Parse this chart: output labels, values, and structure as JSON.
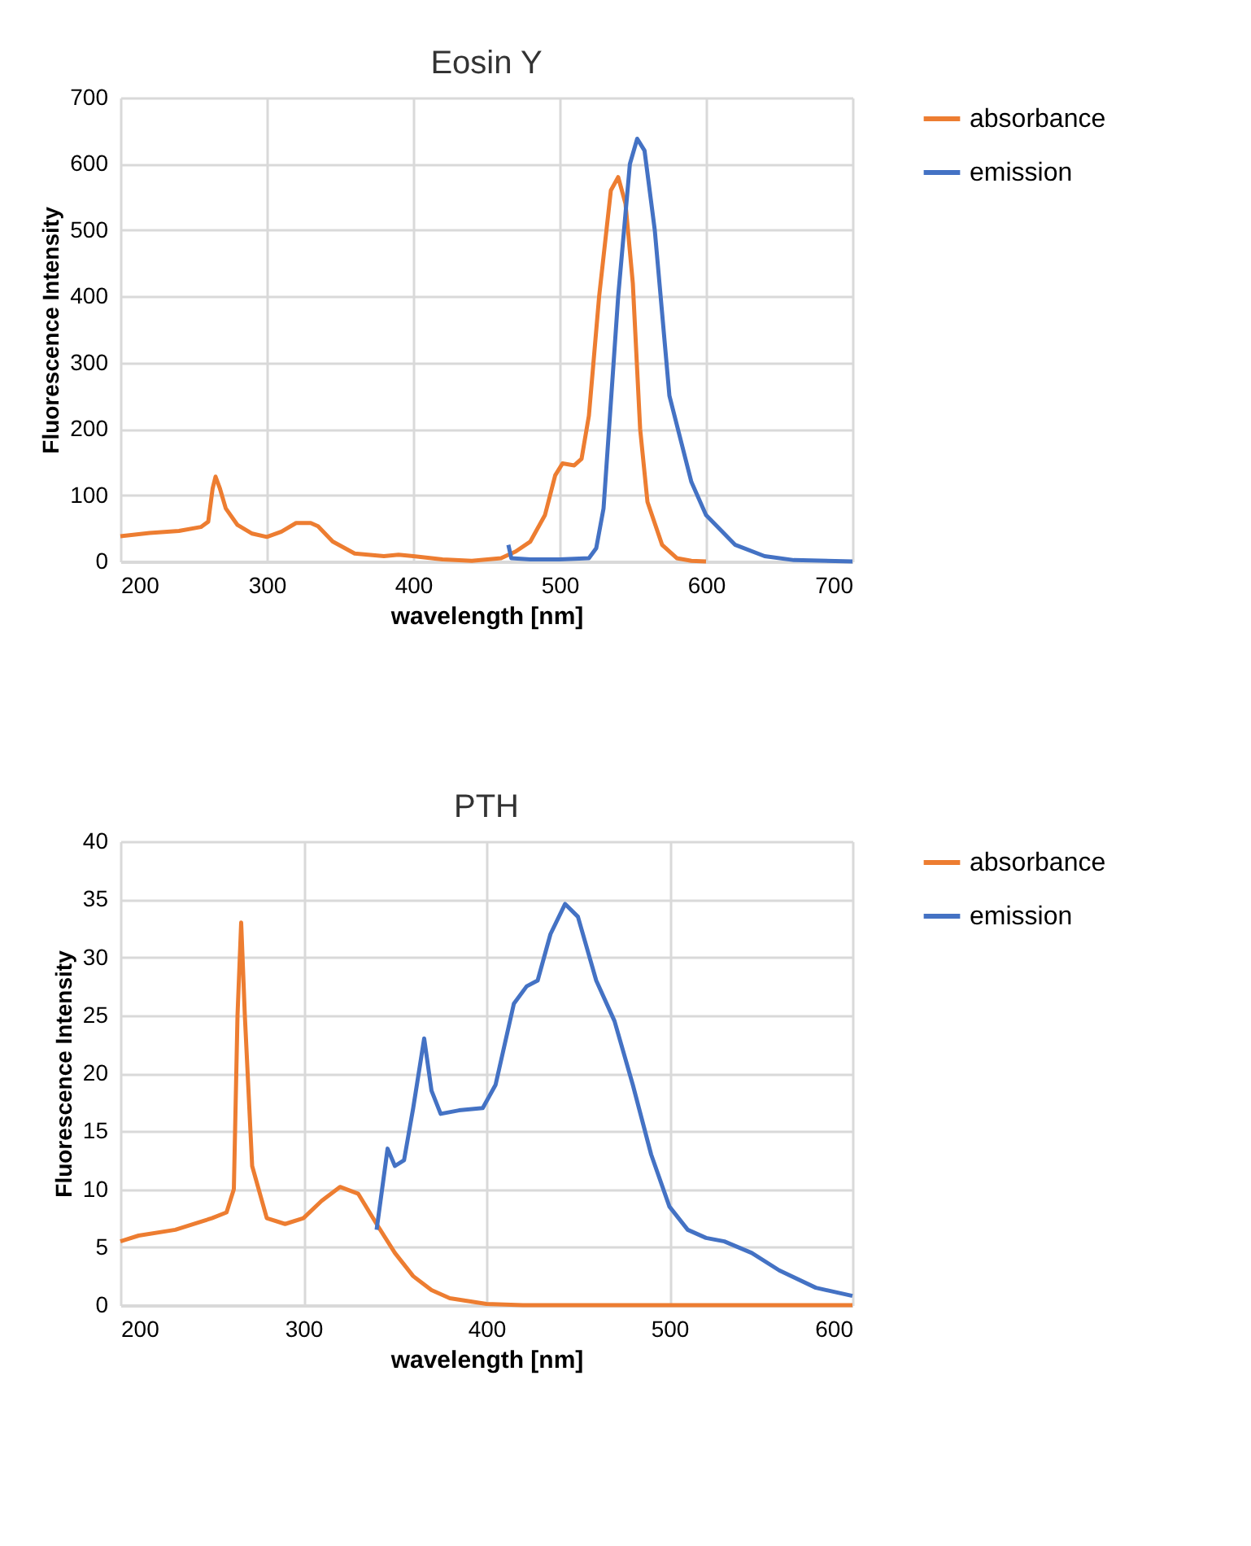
{
  "chart_data": [
    {
      "type": "line",
      "title": "Eosin Y",
      "xlabel": "wavelength [nm]",
      "ylabel": "Fluorescence Intensity",
      "xlim": [
        200,
        700
      ],
      "xticks": [
        200,
        300,
        400,
        500,
        600,
        700
      ],
      "ylim": [
        0,
        700
      ],
      "yticks": [
        0,
        100,
        200,
        300,
        400,
        500,
        600,
        700
      ],
      "grid": true,
      "legend": "right",
      "series": [
        {
          "name": "absorbance",
          "color": "#ed7d31",
          "x": [
            200,
            220,
            240,
            255,
            260,
            263,
            265,
            268,
            272,
            280,
            290,
            300,
            310,
            320,
            330,
            335,
            345,
            360,
            380,
            390,
            400,
            420,
            440,
            460,
            470,
            480,
            490,
            497,
            502,
            510,
            515,
            520,
            527,
            535,
            540,
            545,
            550,
            555,
            560,
            570,
            580,
            590,
            600
          ],
          "values": [
            38,
            43,
            46,
            52,
            60,
            110,
            128,
            110,
            80,
            55,
            42,
            37,
            45,
            58,
            58,
            53,
            30,
            12,
            8,
            10,
            8,
            3,
            1,
            5,
            15,
            30,
            70,
            130,
            148,
            145,
            155,
            220,
            400,
            560,
            580,
            540,
            420,
            200,
            90,
            25,
            5,
            1,
            0
          ]
        },
        {
          "name": "emission",
          "color": "#4472c4",
          "x": [
            465,
            467,
            480,
            500,
            520,
            525,
            530,
            540,
            548,
            553,
            558,
            565,
            575,
            590,
            600,
            620,
            640,
            660,
            700
          ],
          "values": [
            25,
            5,
            3,
            3,
            5,
            20,
            80,
            400,
            600,
            638,
            620,
            500,
            250,
            120,
            70,
            25,
            8,
            2,
            0
          ]
        }
      ]
    },
    {
      "type": "line",
      "title": "PTH",
      "xlabel": "wavelength [nm]",
      "ylabel": "Fluorescence Intensity",
      "xlim": [
        200,
        600
      ],
      "xticks": [
        200,
        300,
        400,
        500,
        600
      ],
      "ylim": [
        0,
        40
      ],
      "yticks": [
        0,
        5,
        10,
        15,
        20,
        25,
        30,
        35,
        40
      ],
      "grid": true,
      "legend": "right",
      "series": [
        {
          "name": "absorbance",
          "color": "#ed7d31",
          "x": [
            200,
            210,
            230,
            250,
            258,
            262,
            264,
            266,
            268,
            272,
            280,
            290,
            300,
            310,
            320,
            330,
            340,
            350,
            360,
            370,
            380,
            400,
            420,
            600
          ],
          "values": [
            5.5,
            6,
            6.5,
            7.5,
            8,
            10,
            25,
            33,
            25,
            12,
            7.5,
            7,
            7.5,
            9,
            10.2,
            9.6,
            7,
            4.5,
            2.5,
            1.3,
            0.6,
            0.1,
            0,
            0
          ]
        },
        {
          "name": "emission",
          "color": "#4472c4",
          "x": [
            340,
            346,
            350,
            355,
            360,
            366,
            370,
            375,
            385,
            398,
            405,
            415,
            422,
            428,
            435,
            443,
            450,
            460,
            470,
            480,
            490,
            500,
            510,
            520,
            530,
            545,
            560,
            580,
            600
          ],
          "values": [
            6.5,
            13.5,
            12,
            12.5,
            17,
            23,
            18.5,
            16.5,
            16.8,
            17,
            19,
            26,
            27.5,
            28,
            32,
            34.6,
            33.5,
            28,
            24.5,
            19,
            13,
            8.5,
            6.5,
            5.8,
            5.5,
            4.5,
            3,
            1.5,
            0.8
          ]
        }
      ]
    }
  ]
}
